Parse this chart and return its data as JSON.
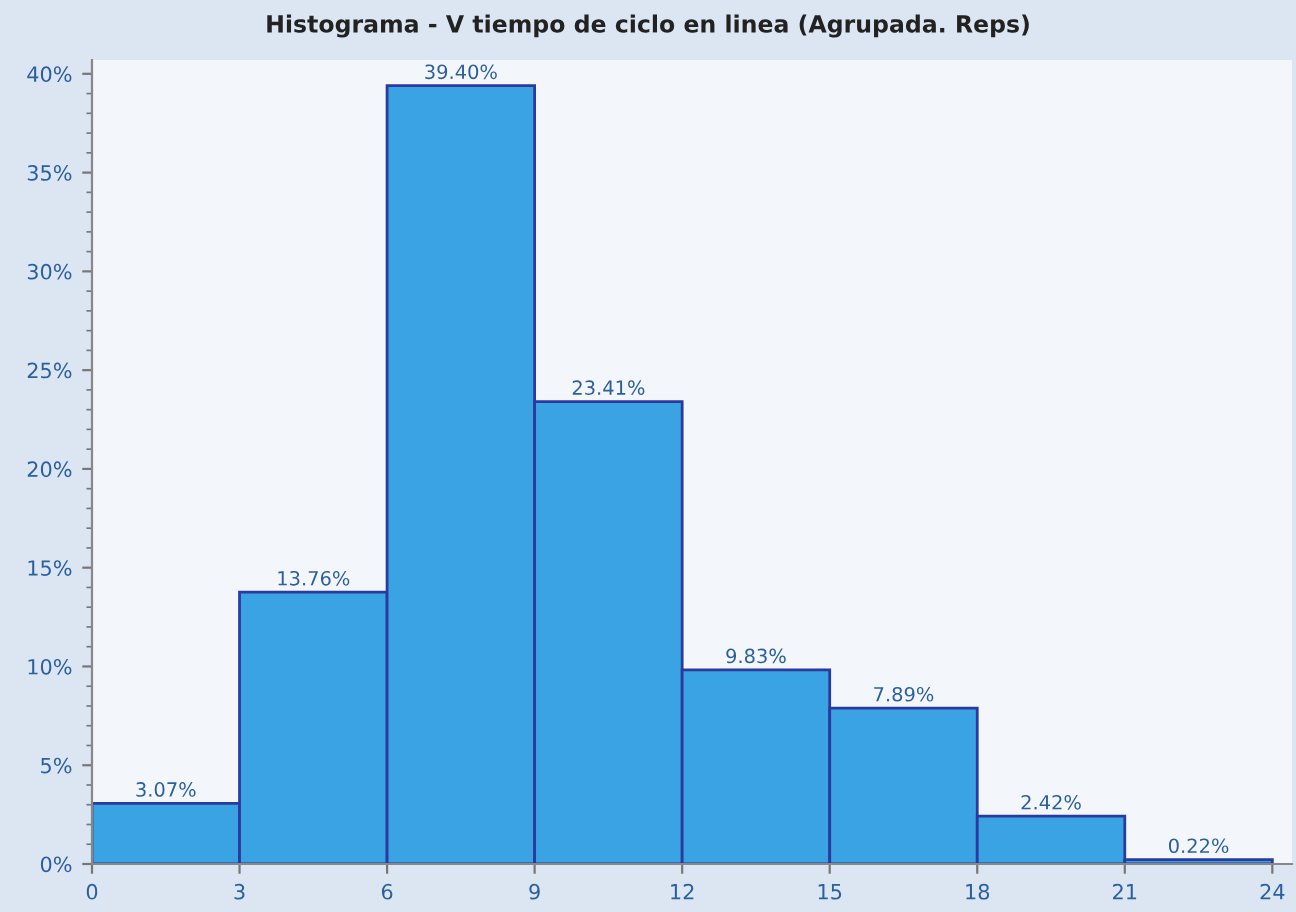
{
  "chart_data": {
    "type": "histogram",
    "title": "Histograma - V tiempo de ciclo en linea (Agrupada. Reps)",
    "bins": [
      0,
      3,
      6,
      9,
      12,
      15,
      18,
      21,
      24
    ],
    "values": [
      3.07,
      13.76,
      39.4,
      23.41,
      9.83,
      7.89,
      2.42,
      0.22
    ],
    "value_labels": [
      "3.07%",
      "13.76%",
      "39.40%",
      "23.41%",
      "9.83%",
      "7.89%",
      "2.42%",
      "0.22%"
    ],
    "color": "#3aa3e3",
    "xlim": [
      0,
      24.4
    ],
    "xticks": [
      0,
      3,
      6,
      9,
      12,
      15,
      18,
      21,
      24
    ],
    "ylim": [
      0,
      40.7
    ],
    "yticks": [
      {
        "value": 0,
        "label": "0%"
      },
      {
        "value": 5,
        "label": "5%"
      },
      {
        "value": 10,
        "label": "10%"
      },
      {
        "value": 15,
        "label": "15%"
      },
      {
        "value": 20,
        "label": "20%"
      },
      {
        "value": 25,
        "label": "25%"
      },
      {
        "value": 30,
        "label": "30%"
      },
      {
        "value": 35,
        "label": "35%"
      },
      {
        "value": 40,
        "label": "40%"
      }
    ],
    "grid": false
  }
}
